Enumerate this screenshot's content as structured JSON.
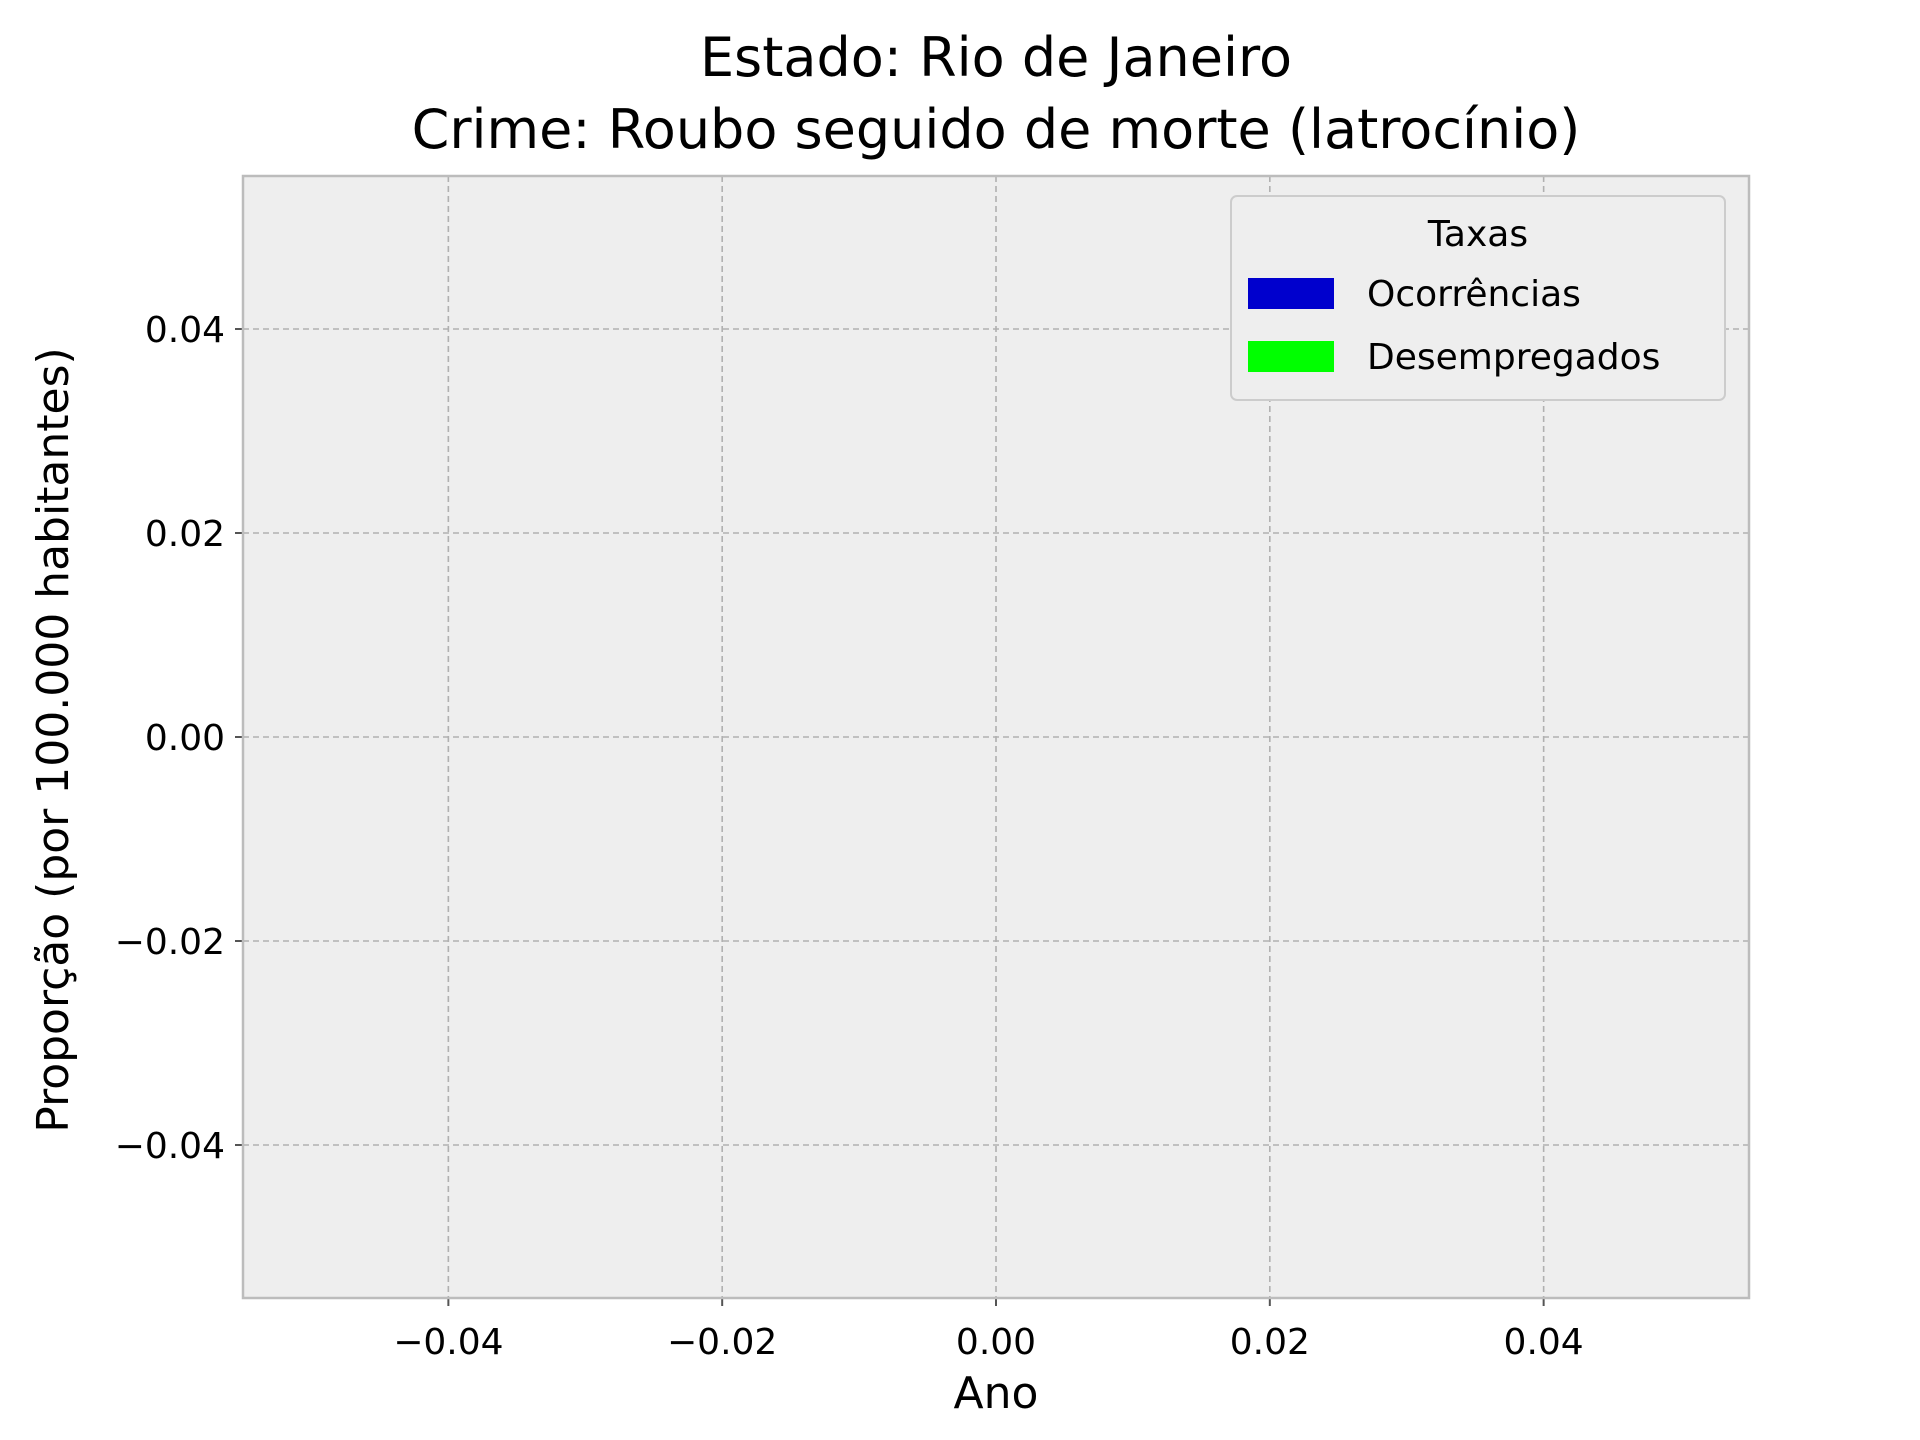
{
  "chart_data": {
    "type": "bar",
    "title": "Estado: Rio de Janeiro",
    "subtitle": "Crime: Roubo seguido de morte (latrocínio)",
    "xlabel": "Ano",
    "ylabel": "Proporção (por 100.000 habitantes)",
    "xlim": [
      -0.055,
      0.055
    ],
    "ylim": [
      -0.055,
      0.055
    ],
    "x_ticks": [
      {
        "value": -0.04,
        "label": "−0.04"
      },
      {
        "value": -0.02,
        "label": "−0.02"
      },
      {
        "value": 0.0,
        "label": "0.00"
      },
      {
        "value": 0.02,
        "label": "0.02"
      },
      {
        "value": 0.04,
        "label": "0.04"
      }
    ],
    "y_ticks": [
      {
        "value": 0.04,
        "label": "0.04"
      },
      {
        "value": 0.02,
        "label": "0.02"
      },
      {
        "value": 0.0,
        "label": "0.00"
      },
      {
        "value": -0.02,
        "label": "−0.02"
      },
      {
        "value": -0.04,
        "label": "−0.04"
      }
    ],
    "grid": true,
    "legend": {
      "title": "Taxas",
      "placement": "top-right",
      "entries": [
        {
          "label": "Ocorrências",
          "color": "#0000cd"
        },
        {
          "label": "Desempregados",
          "color": "#00ff00"
        }
      ]
    },
    "series": [
      {
        "name": "Ocorrências",
        "color": "#0000cd",
        "values": []
      },
      {
        "name": "Desempregados",
        "color": "#00ff00",
        "values": []
      }
    ],
    "plot_background": "#eeeeee",
    "frame_color": "#bcbcbc",
    "grid_color": "#b0b0b0"
  }
}
